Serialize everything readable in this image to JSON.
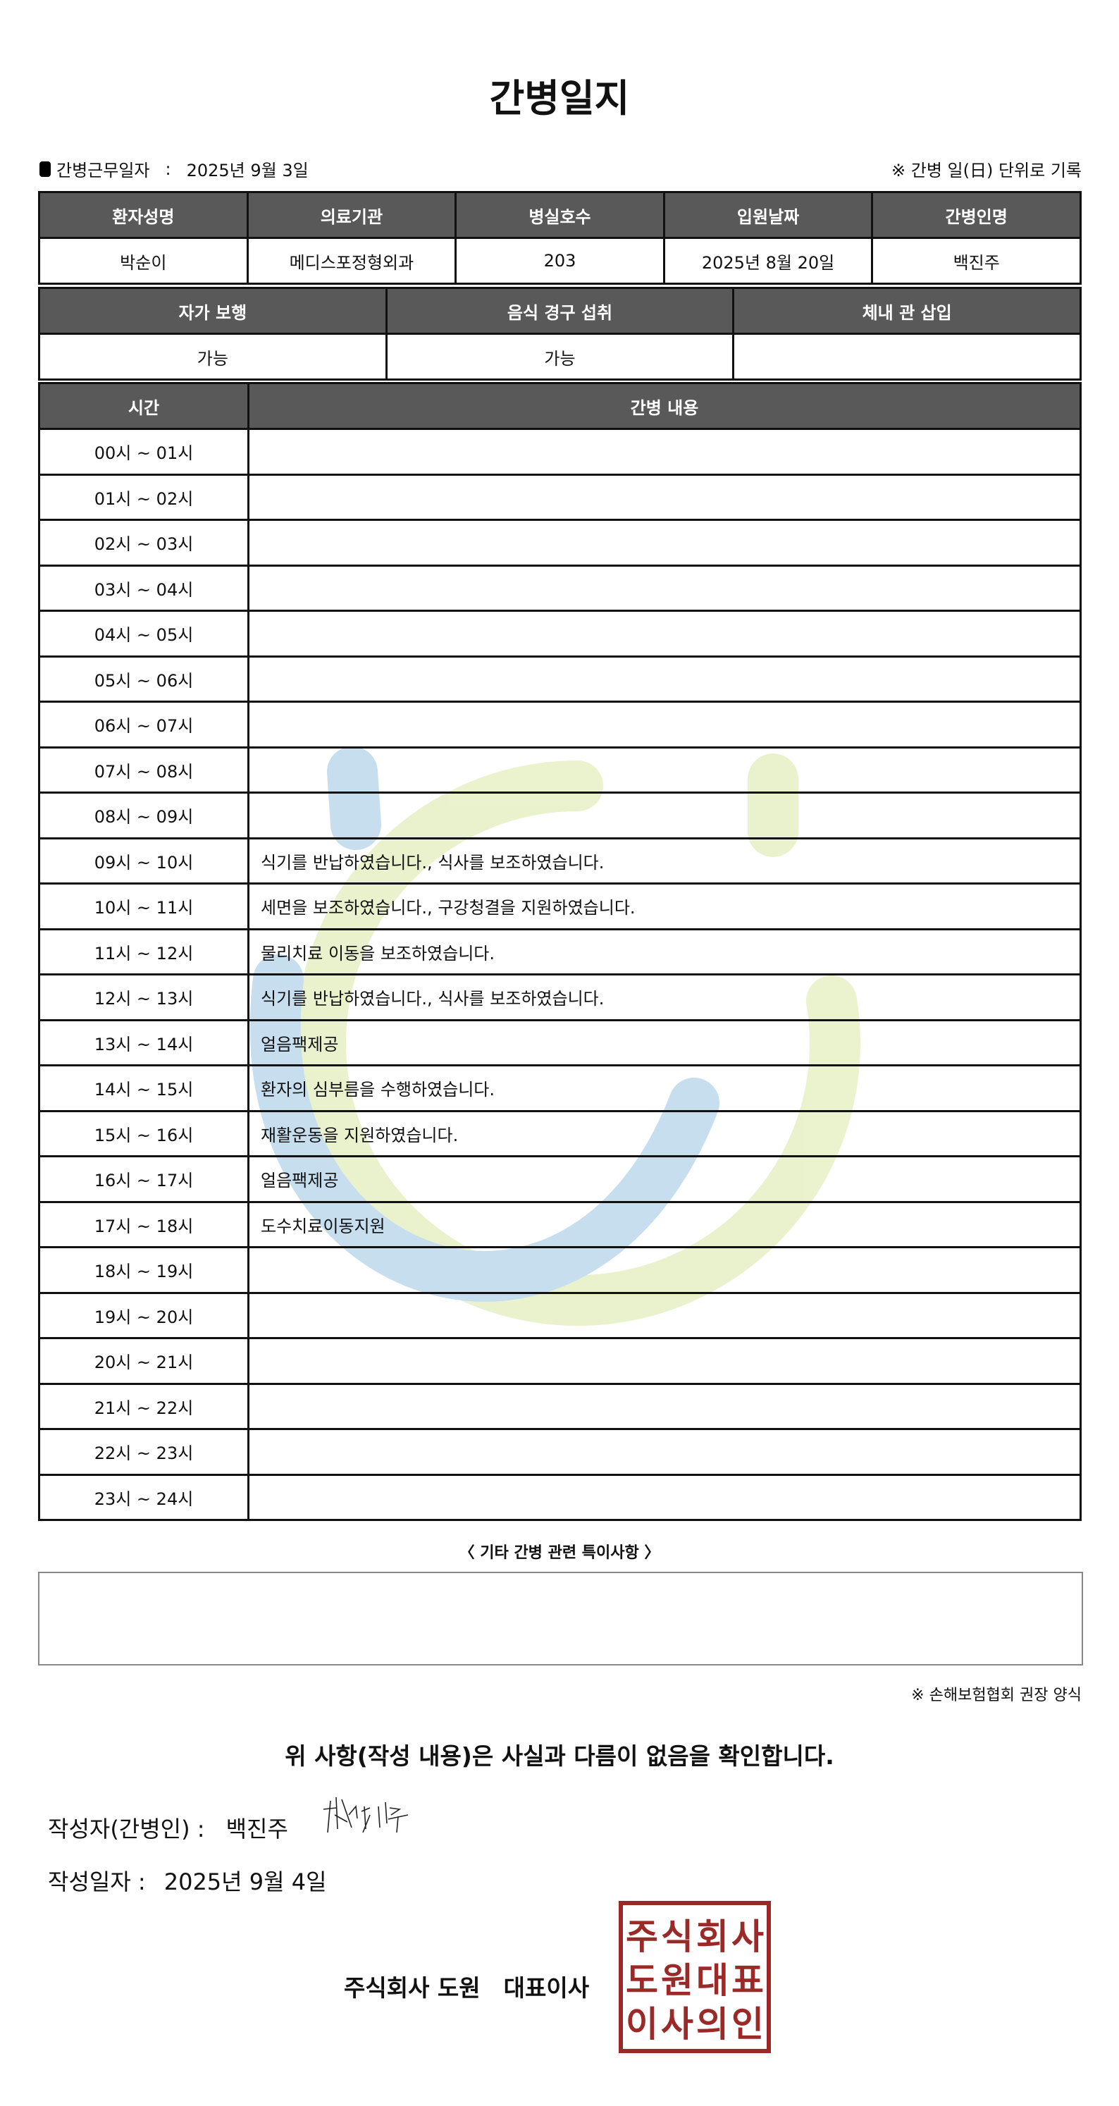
{
  "title": "간병일지",
  "work_date": {
    "label": "간병근무일자",
    "separator": ":",
    "value": "2025년 9월 3일"
  },
  "note_top": "※ 간병 일(日) 단위로 기록",
  "info_table": {
    "headers": [
      "환자성명",
      "의료기관",
      "병실호수",
      "입원날짜",
      "간병인명"
    ],
    "values": [
      "박순이",
      "메디스포정형외과",
      "203",
      "2025년 8월 20일",
      "백진주"
    ]
  },
  "status_table": {
    "headers": [
      "자가 보행",
      "음식 경구 섭취",
      "체내 관 삽입"
    ],
    "values": [
      "가능",
      "가능",
      ""
    ]
  },
  "care_table": {
    "headers": [
      "시간",
      "간병 내용"
    ],
    "rows": [
      {
        "time": "00시 ~ 01시",
        "content": ""
      },
      {
        "time": "01시 ~ 02시",
        "content": ""
      },
      {
        "time": "02시 ~ 03시",
        "content": ""
      },
      {
        "time": "03시 ~ 04시",
        "content": ""
      },
      {
        "time": "04시 ~ 05시",
        "content": ""
      },
      {
        "time": "05시 ~ 06시",
        "content": ""
      },
      {
        "time": "06시 ~ 07시",
        "content": ""
      },
      {
        "time": "07시 ~ 08시",
        "content": ""
      },
      {
        "time": "08시 ~ 09시",
        "content": ""
      },
      {
        "time": "09시 ~ 10시",
        "content": "식기를 반납하였습니다., 식사를 보조하였습니다."
      },
      {
        "time": "10시 ~ 11시",
        "content": "세면을 보조하였습니다., 구강청결을 지원하였습니다."
      },
      {
        "time": "11시 ~ 12시",
        "content": "물리치료 이동을 보조하였습니다."
      },
      {
        "time": "12시 ~ 13시",
        "content": "식기를 반납하였습니다., 식사를 보조하였습니다."
      },
      {
        "time": "13시 ~ 14시",
        "content": "얼음팩제공"
      },
      {
        "time": "14시 ~ 15시",
        "content": "환자의 심부름을 수행하였습니다."
      },
      {
        "time": "15시 ~ 16시",
        "content": "재활운동을 지원하였습니다."
      },
      {
        "time": "16시 ~ 17시",
        "content": "얼음팩제공"
      },
      {
        "time": "17시 ~ 18시",
        "content": "도수치료이동지원"
      },
      {
        "time": "18시 ~ 19시",
        "content": ""
      },
      {
        "time": "19시 ~ 20시",
        "content": ""
      },
      {
        "time": "20시 ~ 21시",
        "content": ""
      },
      {
        "time": "21시 ~ 22시",
        "content": ""
      },
      {
        "time": "22시 ~ 23시",
        "content": ""
      },
      {
        "time": "23시 ~ 24시",
        "content": ""
      }
    ]
  },
  "remarks": {
    "title": "〈 기타 간병 관련 특이사항 〉",
    "value": ""
  },
  "note_bottom": "※ 손해보험협회 권장 양식",
  "confirm_text": "위 사항(작성 내용)은 사실과 다름이 없음을 확인합니다.",
  "writer": {
    "label": "작성자(간병인) :",
    "value": "백진주"
  },
  "written_date": {
    "label": "작성일자 :",
    "value": "2025년 9월 4일"
  },
  "company": "주식회사 도원　대표이사",
  "seal_text": "주식회사도원대표이사의인",
  "colors": {
    "header_bg": "#595959",
    "seal": "#9a2a28",
    "watermark_blue": "#b9d6ec",
    "watermark_green": "#e6efc4"
  }
}
